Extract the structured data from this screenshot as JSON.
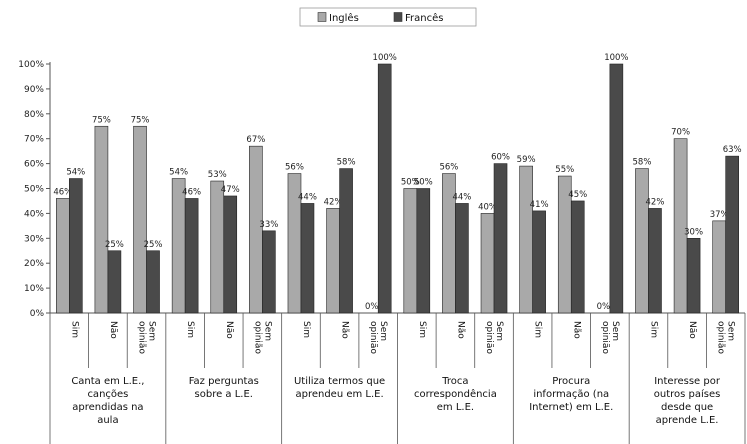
{
  "chart_data": {
    "type": "bar",
    "legend": {
      "position": "top-center"
    },
    "grid": false,
    "ylim": [
      0,
      100
    ],
    "yticks": [
      "0%",
      "10%",
      "20%",
      "30%",
      "40%",
      "50%",
      "60%",
      "70%",
      "80%",
      "90%",
      "100%"
    ],
    "colors": {
      "Inglês": "#a9a9a9",
      "Francês": "#4a4a4a",
      "axis": "#555555"
    },
    "groups": [
      {
        "label": "Canta em L.E., canções aprendidas na aula",
        "lines": [
          "Canta em L.E.,",
          "canções",
          "aprendidas na",
          "aula"
        ],
        "categories": [
          {
            "label": [
              "Sim"
            ],
            "values": [
              46,
              54
            ],
            "labels": [
              "46%",
              "54%"
            ]
          },
          {
            "label": [
              "Não"
            ],
            "values": [
              75,
              25
            ],
            "labels": [
              "75%",
              "25%"
            ]
          },
          {
            "label": [
              "Sem",
              "opinião"
            ],
            "values": [
              75,
              25
            ],
            "labels": [
              "75%",
              "25%"
            ]
          }
        ]
      },
      {
        "label": "Faz perguntas sobre a L.E.",
        "lines": [
          "Faz perguntas",
          "sobre a L.E."
        ],
        "categories": [
          {
            "label": [
              "Sim"
            ],
            "values": [
              54,
              46
            ],
            "labels": [
              "54%",
              "46%"
            ]
          },
          {
            "label": [
              "Não"
            ],
            "values": [
              53,
              47
            ],
            "labels": [
              "53%",
              "47%"
            ]
          },
          {
            "label": [
              "Sem",
              "opinião"
            ],
            "values": [
              67,
              33
            ],
            "labels": [
              "67%",
              "33%"
            ]
          }
        ]
      },
      {
        "label": "Utiliza termos que aprendeu em L.E.",
        "lines": [
          "Utiliza termos que",
          "aprendeu em L.E."
        ],
        "categories": [
          {
            "label": [
              "Sim"
            ],
            "values": [
              56,
              44
            ],
            "labels": [
              "56%",
              "44%"
            ]
          },
          {
            "label": [
              "Não"
            ],
            "values": [
              42,
              58
            ],
            "labels": [
              "42%",
              "58%"
            ]
          },
          {
            "label": [
              "Sem",
              "opinião"
            ],
            "values": [
              0,
              100
            ],
            "labels": [
              "0%",
              "100%"
            ]
          }
        ]
      },
      {
        "label": "Troca correspondência em L.E.",
        "lines": [
          "Troca",
          "correspondência",
          "em L.E."
        ],
        "categories": [
          {
            "label": [
              "Sim"
            ],
            "values": [
              50,
              50
            ],
            "labels": [
              "50%",
              "50%"
            ]
          },
          {
            "label": [
              "Não"
            ],
            "values": [
              56,
              44
            ],
            "labels": [
              "56%",
              "44%"
            ]
          },
          {
            "label": [
              "Sem",
              "opinião"
            ],
            "values": [
              40,
              60
            ],
            "labels": [
              "40%",
              "60%"
            ]
          }
        ]
      },
      {
        "label": "Procura informação (na Internet) em L.E.",
        "lines": [
          "Procura",
          "informação (na",
          "Internet) em L.E."
        ],
        "categories": [
          {
            "label": [
              "Sim"
            ],
            "values": [
              59,
              41
            ],
            "labels": [
              "59%",
              "41%"
            ]
          },
          {
            "label": [
              "Não"
            ],
            "values": [
              55,
              45
            ],
            "labels": [
              "55%",
              "45%"
            ]
          },
          {
            "label": [
              "Sem",
              "opinião"
            ],
            "values": [
              0,
              100
            ],
            "labels": [
              "0%",
              "100%"
            ]
          }
        ]
      },
      {
        "label": "Interesse por outros países desde que aprende L.E.",
        "lines": [
          "Interesse por",
          "outros países",
          "desde que",
          "aprende L.E."
        ],
        "categories": [
          {
            "label": [
              "Sim"
            ],
            "values": [
              58,
              42
            ],
            "labels": [
              "58%",
              "42%"
            ]
          },
          {
            "label": [
              "Não"
            ],
            "values": [
              70,
              30
            ],
            "labels": [
              "70%",
              "30%"
            ]
          },
          {
            "label": [
              "Sem",
              "opinião"
            ],
            "values": [
              37,
              63
            ],
            "labels": [
              "37%",
              "63%"
            ]
          }
        ]
      }
    ],
    "series": [
      {
        "name": "Inglês"
      },
      {
        "name": "Francês"
      }
    ]
  }
}
